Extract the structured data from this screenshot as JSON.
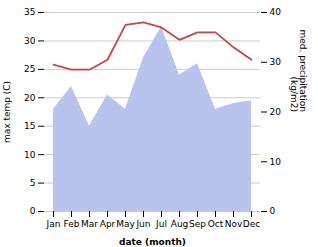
{
  "chart_data": {
    "type": "line",
    "categories": [
      "Jan",
      "Feb",
      "Mar",
      "Apr",
      "May",
      "Jun",
      "Jul",
      "Aug",
      "Sep",
      "Oct",
      "Nov",
      "Dec"
    ],
    "series": [
      {
        "type": "area",
        "color": "#b8c4ee",
        "values": [
          18,
          22,
          15,
          20.5,
          18,
          27,
          32.5,
          24,
          26,
          18,
          19,
          19.5
        ]
      },
      {
        "type": "line",
        "axis": "y2",
        "color": "#cc4444",
        "values": [
          29.5,
          28.5,
          28.5,
          30.5,
          37.5,
          38,
          37,
          34.5,
          36,
          36,
          33,
          30.5
        ]
      }
    ],
    "xlabel": "date (month)",
    "ylabel": "max temp (C)",
    "y2label": "med. precipitation\n(kg/m2)",
    "ylim": [
      0,
      35
    ],
    "yticks": [
      0,
      5,
      10,
      15,
      20,
      25,
      30,
      35
    ],
    "y2lim": [
      0,
      40
    ],
    "y2ticks": [
      0,
      10,
      20,
      30,
      40
    ],
    "grid": true
  }
}
